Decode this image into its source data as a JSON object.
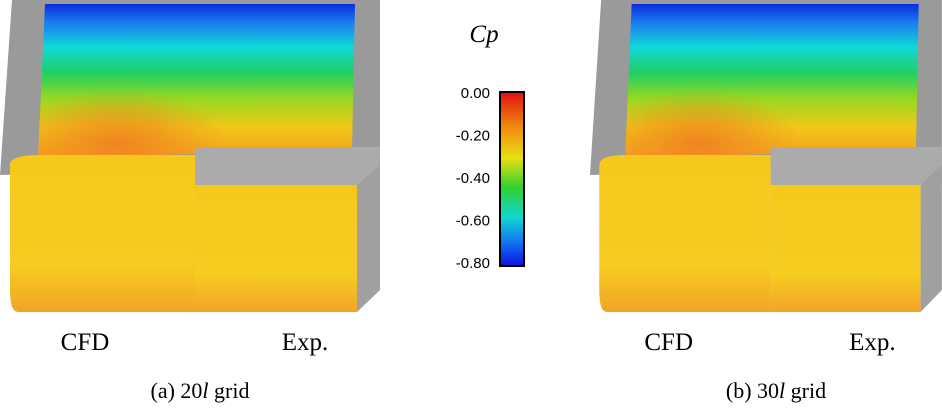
{
  "colorbar": {
    "title": "Cp",
    "ticks": [
      "0.00",
      "-0.20",
      "-0.40",
      "-0.60",
      "-0.80"
    ]
  },
  "panels": [
    {
      "left_label": "CFD",
      "right_label": "Exp.",
      "caption": [
        "(a) 20",
        "l",
        " grid"
      ]
    },
    {
      "left_label": "CFD",
      "right_label": "Exp.",
      "caption": [
        "(b) 30",
        "l",
        " grid"
      ]
    }
  ]
}
